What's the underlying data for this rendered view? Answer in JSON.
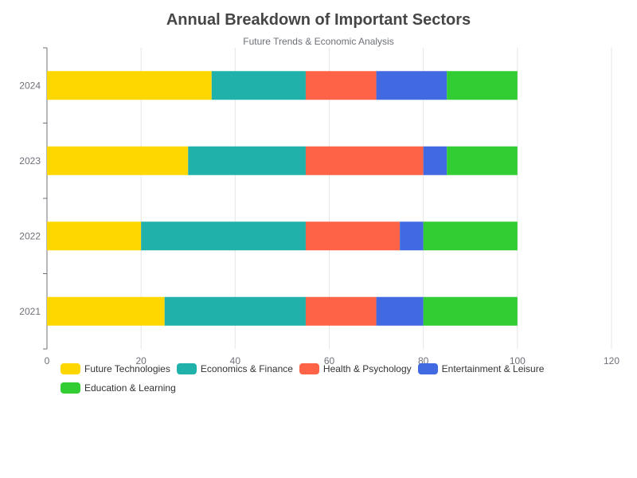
{
  "chart_data": {
    "type": "bar",
    "orientation": "horizontal",
    "stacked": true,
    "title": "Annual Breakdown of Important Sectors",
    "subtitle": "Future Trends & Economic Analysis",
    "categories": [
      "2021",
      "2022",
      "2023",
      "2024"
    ],
    "series": [
      {
        "name": "Future Technologies",
        "color": "#FFD700",
        "values": [
          25,
          20,
          30,
          35
        ]
      },
      {
        "name": "Economics & Finance",
        "color": "#20B2AA",
        "values": [
          30,
          35,
          25,
          20
        ]
      },
      {
        "name": "Health & Psychology",
        "color": "#FF6347",
        "values": [
          15,
          20,
          25,
          15
        ]
      },
      {
        "name": "Entertainment & Leisure",
        "color": "#4169E1",
        "values": [
          10,
          5,
          5,
          15
        ]
      },
      {
        "name": "Education & Learning",
        "color": "#32CD32",
        "values": [
          20,
          20,
          15,
          15
        ]
      }
    ],
    "xlim": [
      0,
      120
    ],
    "xticks": [
      0,
      20,
      40,
      60,
      80,
      100,
      120
    ],
    "grid": true,
    "legend_position": "bottom-left"
  }
}
